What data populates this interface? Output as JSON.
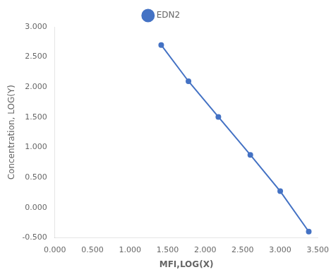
{
  "chart_data": {
    "type": "line",
    "x": [
      1.415,
      1.778,
      2.176,
      2.602,
      3.0,
      3.38
    ],
    "series": [
      {
        "name": "EDN2",
        "color": "#4472c4",
        "marker": "circle",
        "values": [
          2.699,
          2.097,
          1.505,
          0.875,
          0.272,
          -0.398
        ]
      }
    ],
    "xlabel": "MFI,LOG(X)",
    "ylabel": "Concentration, LOG(Y)",
    "xlim": [
      0.0,
      3.5
    ],
    "ylim": [
      -0.5,
      3.0
    ],
    "xticks": [
      {
        "value": 0.0,
        "label": "0.000"
      },
      {
        "value": 0.5,
        "label": "0.500"
      },
      {
        "value": 1.0,
        "label": "1.000"
      },
      {
        "value": 1.5,
        "label": "1.500"
      },
      {
        "value": 2.0,
        "label": "2.000"
      },
      {
        "value": 2.5,
        "label": "2.500"
      },
      {
        "value": 3.0,
        "label": "3.000"
      },
      {
        "value": 3.5,
        "label": "3.500"
      }
    ],
    "yticks": [
      {
        "value": -0.5,
        "label": "-0.500"
      },
      {
        "value": 0.0,
        "label": "0.000"
      },
      {
        "value": 0.5,
        "label": "0.500"
      },
      {
        "value": 1.0,
        "label": "1.000"
      },
      {
        "value": 1.5,
        "label": "1.500"
      },
      {
        "value": 2.0,
        "label": "2.000"
      },
      {
        "value": 2.5,
        "label": "2.500"
      },
      {
        "value": 3.0,
        "label": "3.000"
      }
    ],
    "grid": false,
    "legend": "top"
  }
}
